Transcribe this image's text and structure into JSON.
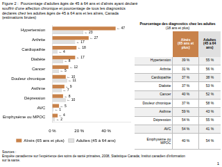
{
  "chart_data": {
    "type": "bar",
    "orientation": "horizontal",
    "title": "Figure 2 :  Pourcentage d'adultes âgés de 45 à 64 ans et d'aînés ayant déclaré\nsouffrir d'une affection chronique et pourcentage de tous les diagnostics\ndéclarés chez les adultes âgés de 45 à 64 ans et les aînés, Canada\n(estimations brutes)",
    "categories": [
      "Hypertension",
      "Arthrite",
      "Cardiopathie",
      "Diabète",
      "Cancer",
      "Douleur chronique",
      "Asthme",
      "Dépression",
      "AVC",
      "Emphysème ou MPOC"
    ],
    "series": [
      {
        "name": "Aînés (65 ans et plus)",
        "color": "#C8824A",
        "values": [
          47,
          27,
          18,
          17,
          12,
          10,
          9,
          8,
          5,
          4
        ],
        "value_labels": [
          "← 47",
          "← 27",
          "← 18",
          "← 17",
          "← 12",
          "← 10",
          "← 9",
          "← 8",
          "← 5",
          "← 4"
        ]
      },
      {
        "name": "Adultes (45 à 64 ans)",
        "color": "#E0E0E0",
        "values": [
          23,
          17,
          4,
          8,
          5,
          11,
          7,
          10,
          1,
          2
        ],
        "value_labels": [
          "← 23",
          "← 17",
          "← 4",
          "← 8",
          "← 5",
          "← 11",
          "← 7",
          "← 10",
          "← 1",
          "← 2"
        ]
      }
    ],
    "xlim": [
      0,
      58
    ],
    "xticks": [
      {
        "value": 0,
        "label": "0 %"
      },
      {
        "value": 20,
        "label": "20 %"
      },
      {
        "value": 40,
        "label": "40 %"
      }
    ],
    "grid": false,
    "legend": "bottom",
    "data_labels": true,
    "table": {
      "title": [
        "Pourcentage des diagnostics chez les adultes",
        "(18 ans et plus)"
      ],
      "columns": [
        "Aînés\n(65 ans et plus)",
        "Adultes\n(45 à 64 ans)"
      ],
      "rows": [
        [
          "39 %",
          "55 %"
        ],
        [
          "31 %",
          "56 %"
        ],
        [
          "37 %",
          "38 %"
        ],
        [
          "37 %",
          "53 %"
        ],
        [
          "40 %",
          "52 %"
        ],
        [
          "37 %",
          "58 %"
        ],
        [
          "59 %",
          "43 %"
        ],
        [
          "54 %",
          "55 %"
        ],
        [
          "54 %",
          "41 %"
        ],
        [
          "40 %",
          "54 %"
        ]
      ]
    },
    "annotations": [
      "Sources :\nEnquête canadienne sur l'expérience des soins de santé primaires, 2008, Statistique Canada; Institut canadien d'information\nsur la santé.",
      "1"
    ]
  }
}
